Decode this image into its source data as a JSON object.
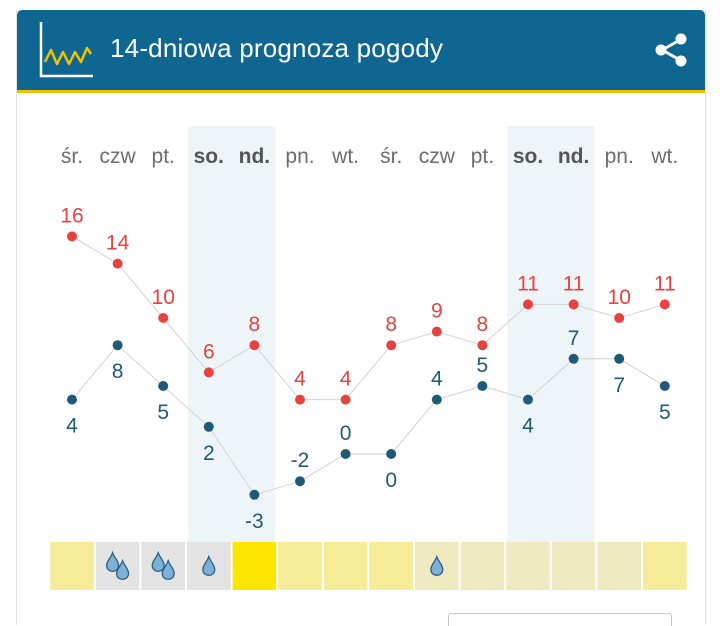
{
  "header": {
    "title": "14-dniowa prognoza pogody",
    "logo_icon": "line-chart-icon",
    "share_icon": "share-icon",
    "bg_color": "#0f6690",
    "accent_color": "#f2c200"
  },
  "chart_data": {
    "type": "line",
    "title": "",
    "xlabel": "",
    "ylabel": "",
    "categories": [
      "śr.",
      "czw",
      "pt.",
      "so.",
      "nd.",
      "pn.",
      "wt.",
      "śr.",
      "czw",
      "pt.",
      "so.",
      "nd.",
      "pn.",
      "wt."
    ],
    "weekend": [
      false,
      false,
      false,
      true,
      true,
      false,
      false,
      false,
      false,
      false,
      true,
      true,
      false,
      false
    ],
    "series": [
      {
        "values": [
          16,
          14,
          10,
          6,
          8,
          4,
          4,
          8,
          9,
          8,
          11,
          11,
          10,
          11
        ],
        "color": "#e8423f"
      },
      {
        "values": [
          4,
          8,
          5,
          2,
          -3,
          -2,
          0,
          0,
          4,
          5,
          4,
          7,
          7,
          5
        ],
        "color": "#1f5a78"
      }
    ],
    "precipitation": [
      "none",
      "heavy",
      "heavy",
      "light",
      "none",
      "none",
      "none",
      "none",
      "light",
      "none",
      "none",
      "none",
      "none",
      "none"
    ],
    "condition_colors": [
      "#f6eb96",
      "#e3e3e3",
      "#e3e3e3",
      "#e3e3e3",
      "#ffe600",
      "#f6eb96",
      "#f6eb96",
      "#f6eb96",
      "#efe9bf",
      "#efe9bf",
      "#efe9bf",
      "#efe9bf",
      "#efe9bf",
      "#f6eb96"
    ],
    "weekend_band_color": "#eef5f9",
    "drop_color": "#7fb0d6",
    "grid": false
  }
}
